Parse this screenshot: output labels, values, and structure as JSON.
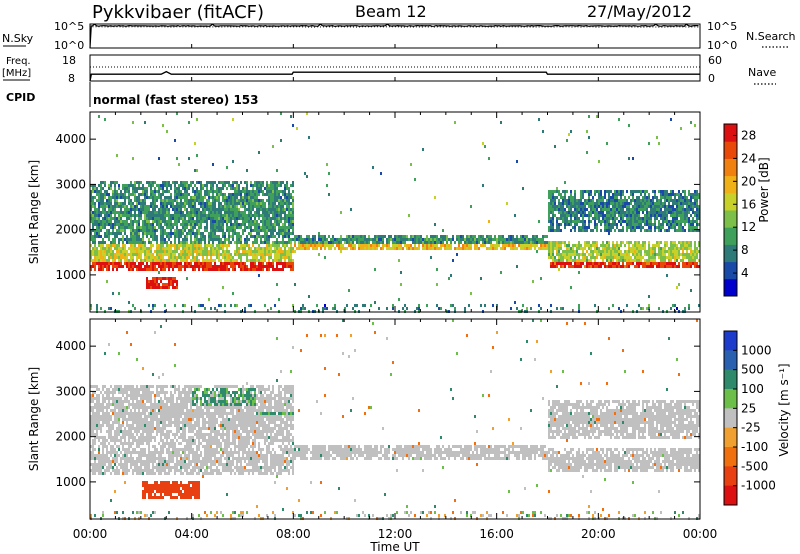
{
  "header": {
    "station": "Pykkvibaer (fitACF)",
    "beam": "Beam 12",
    "date": "27/May/2012"
  },
  "noise_panel": {
    "left_label": "N.Sky",
    "left_ticks": [
      "10^5",
      "10^0"
    ],
    "right_ticks": [
      "10^5",
      "10^0"
    ],
    "right_label": "N.Search"
  },
  "freq_panel": {
    "left_label_top": "Freq.",
    "left_label_unit": "[MHz]",
    "left_ticks": [
      "18",
      "8"
    ],
    "right_ticks": [
      "60",
      "0"
    ],
    "right_label": "Nave"
  },
  "cpid": {
    "label": "CPID",
    "text": "normal (fast stereo) 153"
  },
  "x_axis": {
    "label": "Time UT",
    "ticks": [
      "00:00",
      "04:00",
      "08:00",
      "12:00",
      "16:00",
      "20:00",
      "00:00"
    ]
  },
  "power_panel": {
    "ylabel": "Slant Range [km]",
    "yticks": [
      "1000",
      "2000",
      "3000",
      "4000"
    ],
    "colorbar_label": "Power [dB]",
    "colorbar_ticks": [
      "4",
      "8",
      "12",
      "16",
      "20",
      "24",
      "28"
    ],
    "colors": [
      "#0000cc",
      "#1a4aa8",
      "#2e7a78",
      "#3ea05a",
      "#7cc04a",
      "#c8d02a",
      "#f0b018",
      "#f08010",
      "#e84808",
      "#dc1010"
    ]
  },
  "velocity_panel": {
    "ylabel": "Slant Range [km]",
    "yticks": [
      "1000",
      "2000",
      "3000",
      "4000"
    ],
    "colorbar_label": "Velocity [m s⁻¹]",
    "colorbar_ticks": [
      "1000",
      "500",
      "100",
      "25",
      "-25",
      "-100",
      "-500",
      "-1000"
    ],
    "colors": [
      "#1e3ccc",
      "#2a60b0",
      "#2e8a6a",
      "#6cc04a",
      "#c0c0c0",
      "#f0a030",
      "#f07010",
      "#e84010",
      "#dc1010"
    ]
  },
  "chart_data": [
    {
      "type": "line",
      "name": "noise",
      "x_range_hours": [
        0,
        24
      ],
      "ylim_log10": [
        0,
        5
      ],
      "description_series": [
        {
          "name": "N.Sky",
          "x": [
            0,
            0.05,
            0.1,
            24
          ],
          "y_log10": [
            0,
            4.6,
            4.6,
            4.6
          ]
        }
      ]
    },
    {
      "type": "line",
      "name": "frequency",
      "ylim": [
        8,
        18
      ],
      "series": [
        {
          "name": "Freq.",
          "x": [
            0,
            0.05,
            2.8,
            3.0,
            3.2,
            7.95,
            8.0,
            17.95,
            18.0,
            24
          ],
          "y": [
            8,
            10.6,
            10.6,
            11.6,
            10.6,
            10.6,
            11.4,
            11.4,
            10.6,
            10.6
          ]
        },
        {
          "name": "Nave",
          "x": [
            0,
            24
          ],
          "y_right": [
            22,
            22
          ]
        }
      ]
    },
    {
      "type": "heatmap",
      "name": "power",
      "x_range_hours": [
        0,
        24
      ],
      "ylim_km": [
        180,
        4600
      ],
      "zlim_db": [
        0,
        30
      ],
      "bands": [
        {
          "t0": 0,
          "t1": 8,
          "r_center": 1250,
          "halfwidth": 100,
          "db": 28
        },
        {
          "t0": 0,
          "t1": 8,
          "r_center": 1500,
          "halfwidth": 220,
          "db": 16
        },
        {
          "t0": 0,
          "t1": 8,
          "r_center": 2400,
          "halfwidth": 700,
          "db": 9
        },
        {
          "t0": 2.2,
          "t1": 3.4,
          "r_center": 850,
          "halfwidth": 150,
          "db": 28
        },
        {
          "t0": 8,
          "t1": 18,
          "r_center": 1650,
          "halfwidth": 70,
          "db": 19
        },
        {
          "t0": 8,
          "t1": 18,
          "r_center": 1800,
          "halfwidth": 110,
          "db": 9
        },
        {
          "t0": 18,
          "t1": 24,
          "r_center": 1250,
          "halfwidth": 80,
          "db": 27
        },
        {
          "t0": 18,
          "t1": 24,
          "r_center": 1500,
          "halfwidth": 250,
          "db": 15
        },
        {
          "t0": 18,
          "t1": 24,
          "r_center": 2450,
          "halfwidth": 450,
          "db": 8
        }
      ]
    },
    {
      "type": "heatmap",
      "name": "velocity",
      "x_range_hours": [
        0,
        24
      ],
      "ylim_km": [
        180,
        4600
      ],
      "zlim_ms": [
        -1000,
        1000
      ],
      "bands": [
        {
          "t0": 0,
          "t1": 8,
          "r_center": 1500,
          "halfwidth": 300,
          "v": 0
        },
        {
          "t0": 0,
          "t1": 8,
          "r_center": 2500,
          "halfwidth": 700,
          "v": 0
        },
        {
          "t0": 4,
          "t1": 6.5,
          "r_center": 2800,
          "halfwidth": 350,
          "v": 100
        },
        {
          "t0": 6.5,
          "t1": 8,
          "r_center": 2550,
          "halfwidth": 120,
          "v": 100
        },
        {
          "t0": 2.0,
          "t1": 4.3,
          "r_center": 850,
          "halfwidth": 200,
          "v": -500
        },
        {
          "t0": 8,
          "t1": 18,
          "r_center": 1700,
          "halfwidth": 180,
          "v": 0
        },
        {
          "t0": 18,
          "t1": 24,
          "r_center": 1500,
          "halfwidth": 280,
          "v": 0
        },
        {
          "t0": 18,
          "t1": 24,
          "r_center": 2400,
          "halfwidth": 450,
          "v": 0
        }
      ]
    }
  ]
}
